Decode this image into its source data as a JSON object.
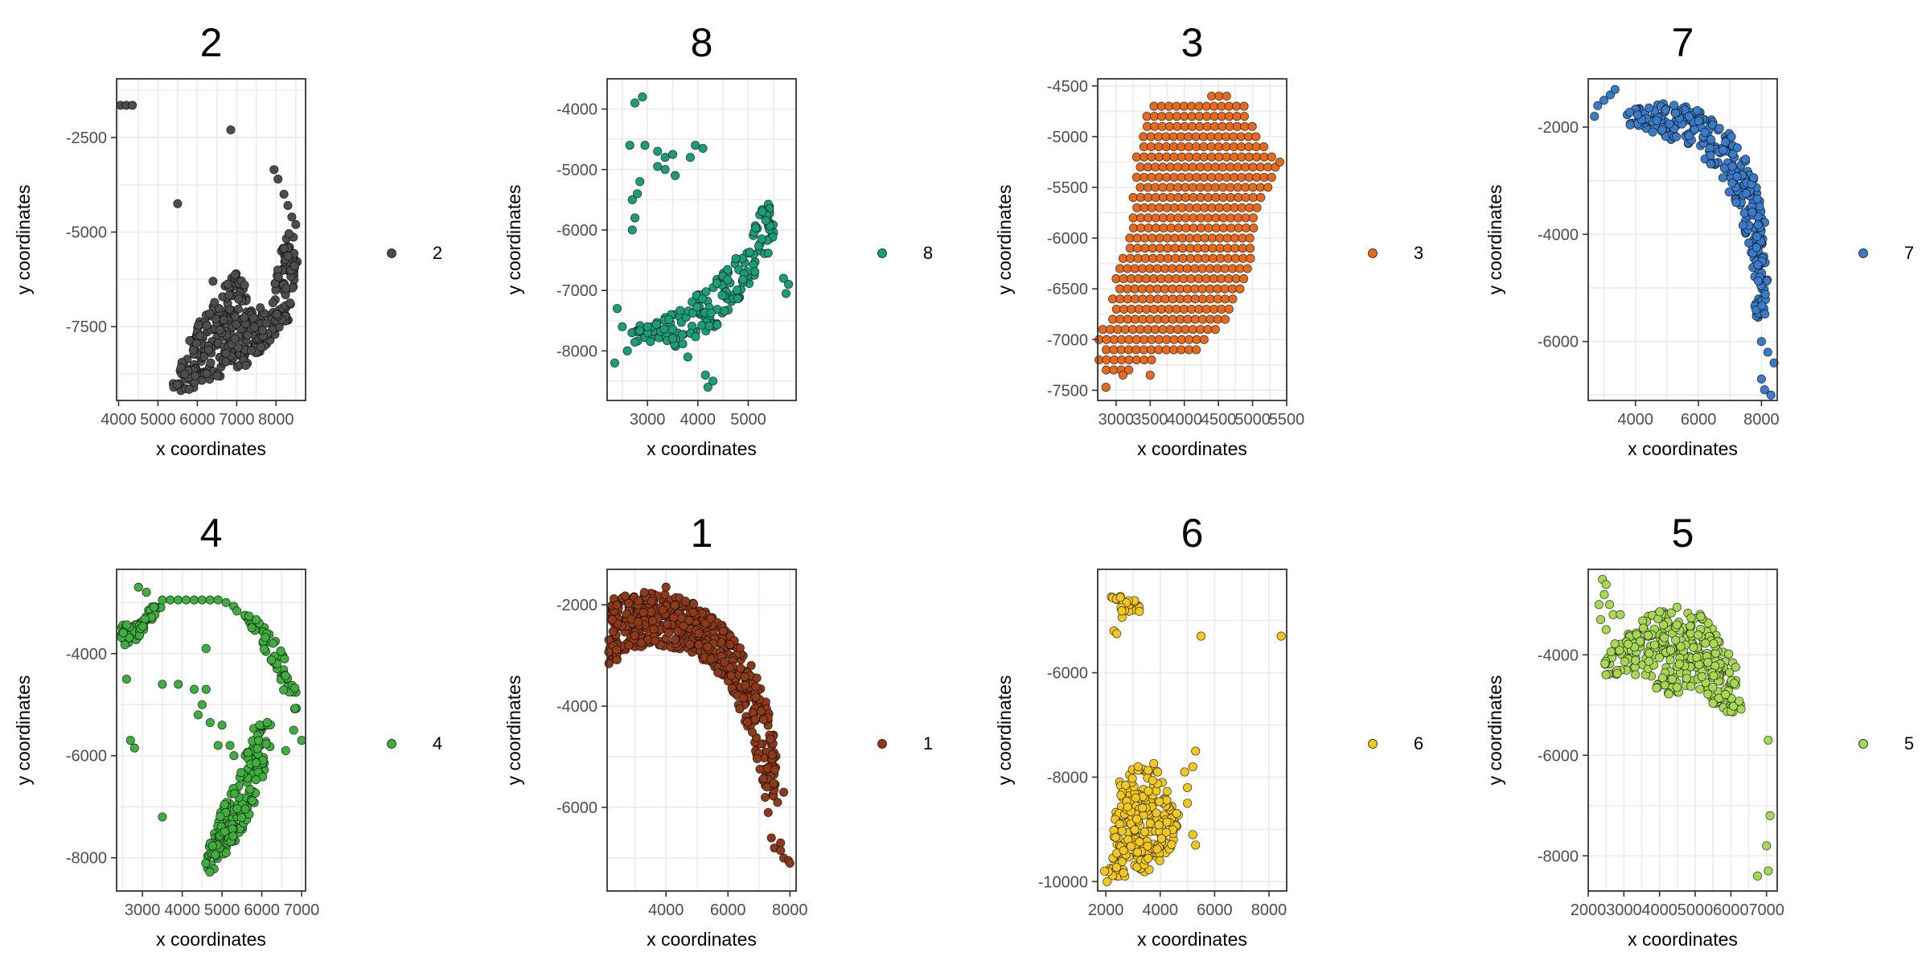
{
  "chart_data": [
    {
      "type": "scatter",
      "title": "2",
      "xlabel": "x coordinates",
      "ylabel": "y coordinates",
      "xlim": [
        3950,
        8750
      ],
      "ylim": [
        -9450,
        -950
      ],
      "xticks": [
        4000,
        5000,
        6000,
        7000,
        8000
      ],
      "yticks": [
        -2500,
        -5000,
        -7500
      ],
      "color": "#4d4d4d",
      "legend": "2",
      "blobs": [
        {
          "poly": [
            [
              5350,
              -9100
            ],
            [
              5900,
              -7600
            ],
            [
              6600,
              -6500
            ],
            [
              7050,
              -6000
            ],
            [
              7450,
              -7200
            ],
            [
              7900,
              -6900
            ],
            [
              8050,
              -5600
            ],
            [
              8400,
              -4800
            ],
            [
              8550,
              -5800
            ],
            [
              8300,
              -7400
            ],
            [
              7300,
              -8500
            ],
            [
              6200,
              -9000
            ],
            [
              5500,
              -9300
            ]
          ],
          "n": 380
        }
      ],
      "points": [
        [
          4050,
          -1650
        ],
        [
          4200,
          -1650
        ],
        [
          4350,
          -1650
        ],
        [
          6850,
          -2300
        ],
        [
          5500,
          -4250
        ],
        [
          7950,
          -3350
        ],
        [
          8050,
          -3600
        ],
        [
          8200,
          -4000
        ],
        [
          8300,
          -4300
        ],
        [
          8400,
          -4600
        ],
        [
          8500,
          -4800
        ],
        [
          6400,
          -6300
        ],
        [
          7200,
          -6400
        ],
        [
          7600,
          -7000
        ]
      ]
    },
    {
      "type": "scatter",
      "title": "8",
      "xlabel": "x coordinates",
      "ylabel": "y coordinates",
      "xlim": [
        2200,
        5950
      ],
      "ylim": [
        -8820,
        -3500
      ],
      "xticks": [
        3000,
        4000,
        5000
      ],
      "yticks": [
        -4000,
        -5000,
        -6000,
        -7000,
        -8000
      ],
      "color": "#1b9e77",
      "legend": "8",
      "blobs": [
        {
          "poly": [
            [
              2550,
              -7600
            ],
            [
              3000,
              -7500
            ],
            [
              3600,
              -7350
            ],
            [
              4200,
              -6900
            ],
            [
              4700,
              -6500
            ],
            [
              5100,
              -6000
            ],
            [
              5350,
              -5500
            ],
            [
              5550,
              -5650
            ],
            [
              5500,
              -6300
            ],
            [
              5100,
              -6800
            ],
            [
              4500,
              -7500
            ],
            [
              4000,
              -7850
            ],
            [
              3300,
              -8000
            ],
            [
              2800,
              -8000
            ]
          ],
          "n": 170
        }
      ],
      "points": [
        [
          2750,
          -3900
        ],
        [
          2900,
          -3800
        ],
        [
          2650,
          -4600
        ],
        [
          2950,
          -4600
        ],
        [
          3200,
          -4700
        ],
        [
          3350,
          -4800
        ],
        [
          3200,
          -4950
        ],
        [
          3350,
          -5000
        ],
        [
          3500,
          -4750
        ],
        [
          3550,
          -5100
        ],
        [
          3850,
          -4800
        ],
        [
          3950,
          -4600
        ],
        [
          4100,
          -4650
        ],
        [
          2700,
          -5500
        ],
        [
          2750,
          -5800
        ],
        [
          2800,
          -5400
        ],
        [
          2850,
          -5200
        ],
        [
          2700,
          -6000
        ],
        [
          2400,
          -7300
        ],
        [
          2500,
          -7600
        ],
        [
          2350,
          -8200
        ],
        [
          2600,
          -8000
        ],
        [
          4150,
          -8400
        ],
        [
          4300,
          -8500
        ],
        [
          4200,
          -8600
        ],
        [
          5700,
          -6800
        ],
        [
          5800,
          -6900
        ],
        [
          5750,
          -7050
        ],
        [
          3000,
          -7600
        ],
        [
          3800,
          -8100
        ]
      ]
    },
    {
      "type": "scatter",
      "title": "3",
      "xlabel": "x coordinates",
      "ylabel": "y coordinates",
      "xlim": [
        2730,
        5500
      ],
      "ylim": [
        -7600,
        -4430
      ],
      "xticks": [
        3000,
        3500,
        4000,
        4500,
        5000,
        5500
      ],
      "yticks": [
        -4500,
        -5000,
        -5500,
        -6000,
        -6500,
        -7000,
        -7500
      ],
      "color": "#e66a1d",
      "legend": "3",
      "grid": true
    },
    {
      "type": "scatter",
      "title": "7",
      "xlabel": "x coordinates",
      "ylabel": "y coordinates",
      "xlim": [
        2500,
        8500
      ],
      "ylim": [
        -7100,
        -1100
      ],
      "xticks": [
        4000,
        6000,
        8000
      ],
      "yticks": [
        -2000,
        -4000,
        -6000
      ],
      "color": "#3a7bc8",
      "legend": "7",
      "blobs": [
        {
          "poly": [
            [
              3700,
              -1700
            ],
            [
              4800,
              -1550
            ],
            [
              6000,
              -1650
            ],
            [
              7000,
              -2100
            ],
            [
              7700,
              -2800
            ],
            [
              8100,
              -3700
            ],
            [
              8200,
              -4700
            ],
            [
              8100,
              -5700
            ],
            [
              7800,
              -5500
            ],
            [
              7700,
              -4500
            ],
            [
              7300,
              -3600
            ],
            [
              6700,
              -2900
            ],
            [
              5800,
              -2400
            ],
            [
              4600,
              -2100
            ],
            [
              3700,
              -2050
            ]
          ],
          "n": 300
        }
      ],
      "points": [
        [
          2700,
          -1800
        ],
        [
          2800,
          -1600
        ],
        [
          3000,
          -1500
        ],
        [
          3200,
          -1400
        ],
        [
          3350,
          -1300
        ],
        [
          8000,
          -6000
        ],
        [
          8200,
          -6200
        ],
        [
          8000,
          -6700
        ],
        [
          8100,
          -6900
        ],
        [
          8300,
          -7000
        ],
        [
          8400,
          -6400
        ]
      ]
    },
    {
      "type": "scatter",
      "title": "4",
      "xlabel": "x coordinates",
      "ylabel": "y coordinates",
      "xlim": [
        2350,
        7100
      ],
      "ylim": [
        -8650,
        -2350
      ],
      "xticks": [
        3000,
        4000,
        5000,
        6000,
        7000
      ],
      "yticks": [
        -4000,
        -6000,
        -8000
      ],
      "color": "#3fae3f",
      "legend": "4",
      "blobs": [
        {
          "poly": [
            [
              4450,
              -8300
            ],
            [
              5000,
              -7000
            ],
            [
              5500,
              -6200
            ],
            [
              5800,
              -5400
            ],
            [
              6300,
              -5300
            ],
            [
              6200,
              -6000
            ],
            [
              5700,
              -7200
            ],
            [
              5100,
              -8000
            ],
            [
              4600,
              -8400
            ]
          ],
          "n": 170
        },
        {
          "poly": [
            [
              2400,
              -3400
            ],
            [
              2900,
              -3400
            ],
            [
              3300,
              -3000
            ],
            [
              3600,
              -2950
            ],
            [
              3300,
              -3300
            ],
            [
              2900,
              -3700
            ],
            [
              2500,
              -3900
            ]
          ],
          "n": 60
        },
        {
          "poly": [
            [
              5300,
              -3000
            ],
            [
              6000,
              -3400
            ],
            [
              6700,
              -4100
            ],
            [
              7000,
              -5200
            ],
            [
              6700,
              -5100
            ],
            [
              6300,
              -4200
            ],
            [
              5600,
              -3400
            ],
            [
              5200,
              -3100
            ]
          ],
          "n": 55
        }
      ],
      "points": [
        [
          2900,
          -2700
        ],
        [
          3100,
          -2800
        ],
        [
          3500,
          -2950
        ],
        [
          3700,
          -2950
        ],
        [
          3900,
          -2950
        ],
        [
          4100,
          -2950
        ],
        [
          4300,
          -2950
        ],
        [
          4500,
          -2950
        ],
        [
          4700,
          -2950
        ],
        [
          4900,
          -2950
        ],
        [
          5100,
          -3000
        ],
        [
          2600,
          -4500
        ],
        [
          2700,
          -5700
        ],
        [
          2800,
          -5850
        ],
        [
          3500,
          -4600
        ],
        [
          3900,
          -4600
        ],
        [
          4300,
          -4700
        ],
        [
          4500,
          -5000
        ],
        [
          4600,
          -4700
        ],
        [
          4400,
          -5200
        ],
        [
          4700,
          -5350
        ],
        [
          5000,
          -5400
        ],
        [
          5200,
          -5800
        ],
        [
          5300,
          -6000
        ],
        [
          4900,
          -5800
        ],
        [
          3500,
          -7200
        ],
        [
          4600,
          -3900
        ],
        [
          6800,
          -5500
        ],
        [
          7000,
          -5700
        ],
        [
          6600,
          -5900
        ]
      ]
    },
    {
      "type": "scatter",
      "title": "1",
      "xlabel": "x coordinates",
      "ylabel": "y coordinates",
      "xlim": [
        2100,
        8200
      ],
      "ylim": [
        -7650,
        -1300
      ],
      "xticks": [
        4000,
        6000,
        8000
      ],
      "yticks": [
        -2000,
        -4000,
        -6000
      ],
      "color": "#8c3a1a",
      "legend": "1",
      "blobs": [
        {
          "poly": [
            [
              2150,
              -1900
            ],
            [
              3000,
              -1750
            ],
            [
              4000,
              -1750
            ],
            [
              5000,
              -2000
            ],
            [
              6000,
              -2500
            ],
            [
              6800,
              -3200
            ],
            [
              7300,
              -4000
            ],
            [
              7600,
              -5000
            ],
            [
              7500,
              -5800
            ],
            [
              7100,
              -5600
            ],
            [
              6800,
              -4700
            ],
            [
              6200,
              -3800
            ],
            [
              5500,
              -3200
            ],
            [
              4700,
              -2900
            ],
            [
              3700,
              -2800
            ],
            [
              2700,
              -2900
            ],
            [
              2150,
              -3300
            ]
          ],
          "n": 560
        }
      ],
      "points": [
        [
          4000,
          -1650
        ],
        [
          7400,
          -6600
        ],
        [
          7500,
          -6800
        ],
        [
          7700,
          -6700
        ],
        [
          7800,
          -7000
        ],
        [
          7950,
          -7050
        ],
        [
          7600,
          -5900
        ],
        [
          7200,
          -5800
        ],
        [
          7800,
          -5700
        ],
        [
          8000,
          -7100
        ],
        [
          7300,
          -6100
        ],
        [
          7700,
          -6850
        ]
      ]
    },
    {
      "type": "scatter",
      "title": "6",
      "xlabel": "x coordinates",
      "ylabel": "y coordinates",
      "xlim": [
        1700,
        8650
      ],
      "ylim": [
        -10180,
        -4020
      ],
      "xticks": [
        2000,
        4000,
        6000,
        8000
      ],
      "yticks": [
        -6000,
        -8000,
        -10000
      ],
      "color": "#f2c71f",
      "legend": "6",
      "blobs": [
        {
          "poly": [
            [
              2050,
              -9900
            ],
            [
              2300,
              -9000
            ],
            [
              2500,
              -8000
            ],
            [
              3000,
              -7800
            ],
            [
              3800,
              -7700
            ],
            [
              4200,
              -8200
            ],
            [
              4700,
              -8700
            ],
            [
              4500,
              -9300
            ],
            [
              3700,
              -9800
            ],
            [
              2800,
              -9900
            ]
          ],
          "n": 230
        },
        {
          "poly": [
            [
              2200,
              -4500
            ],
            [
              2600,
              -4500
            ],
            [
              3400,
              -4700
            ],
            [
              3300,
              -4900
            ],
            [
              2500,
              -4950
            ],
            [
              2200,
              -4800
            ]
          ],
          "n": 22
        }
      ],
      "points": [
        [
          2300,
          -5200
        ],
        [
          2400,
          -5250
        ],
        [
          5500,
          -5300
        ],
        [
          8450,
          -5300
        ],
        [
          4900,
          -7900
        ],
        [
          5000,
          -8200
        ],
        [
          5300,
          -7500
        ],
        [
          5200,
          -7800
        ],
        [
          5000,
          -8500
        ],
        [
          5300,
          -9300
        ],
        [
          5200,
          -9100
        ],
        [
          1950,
          -9800
        ],
        [
          2050,
          -10000
        ]
      ]
    },
    {
      "type": "scatter",
      "title": "5",
      "xlabel": "x coordinates",
      "ylabel": "y coordinates",
      "xlim": [
        2000,
        7300
      ],
      "ylim": [
        -8700,
        -2300
      ],
      "xticks": [
        2000,
        3000,
        4000,
        5000,
        6000,
        7000
      ],
      "yticks": [
        -4000,
        -6000,
        -8000
      ],
      "color": "#a6d854",
      "legend": "5",
      "blobs": [
        {
          "poly": [
            [
              2400,
              -4000
            ],
            [
              3000,
              -3600
            ],
            [
              3700,
              -3200
            ],
            [
              4500,
              -3050
            ],
            [
              5200,
              -3200
            ],
            [
              5800,
              -3700
            ],
            [
              6200,
              -4300
            ],
            [
              6300,
              -5100
            ],
            [
              5700,
              -5200
            ],
            [
              5300,
              -4800
            ],
            [
              4700,
              -4700
            ],
            [
              4200,
              -4900
            ],
            [
              3600,
              -4400
            ],
            [
              2900,
              -4500
            ],
            [
              2400,
              -4400
            ]
          ],
          "n": 300
        }
      ],
      "points": [
        [
          2400,
          -2500
        ],
        [
          2500,
          -2600
        ],
        [
          2450,
          -2800
        ],
        [
          2300,
          -3000
        ],
        [
          2600,
          -3000
        ],
        [
          2350,
          -3300
        ],
        [
          2700,
          -3200
        ],
        [
          2500,
          -3500
        ],
        [
          7050,
          -5700
        ],
        [
          7100,
          -7200
        ],
        [
          7000,
          -7800
        ],
        [
          6750,
          -8400
        ],
        [
          7050,
          -8300
        ],
        [
          2900,
          -3200
        ]
      ]
    }
  ]
}
